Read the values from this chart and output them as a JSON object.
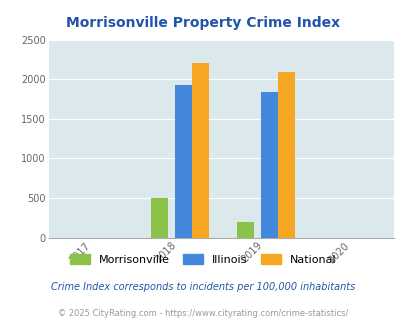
{
  "title": "Morrisonville Property Crime Index",
  "title_color": "#2255AA",
  "years": [
    2017,
    2018,
    2019,
    2020
  ],
  "categories": [
    "Morrisonville",
    "Illinois",
    "National"
  ],
  "bar_colors": [
    "#8BC34A",
    "#4488DD",
    "#F5A623"
  ],
  "data": {
    "2018": [
      500,
      1930,
      2200
    ],
    "2019": [
      200,
      1840,
      2090
    ]
  },
  "ylim": [
    0,
    2500
  ],
  "yticks": [
    0,
    500,
    1000,
    1500,
    2000,
    2500
  ],
  "background_color": "#FFFFFF",
  "plot_bg_color": "#DCE9EC",
  "grid_color": "#FFFFFF",
  "footnote1": "Crime Index corresponds to incidents per 100,000 inhabitants",
  "footnote2": "© 2025 CityRating.com - https://www.cityrating.com/crime-statistics/",
  "footnote1_color": "#2255AA",
  "footnote2_color": "#999999",
  "bar_width": 0.2,
  "legend_labels": [
    "Morrisonville",
    "Illinois",
    "National"
  ]
}
